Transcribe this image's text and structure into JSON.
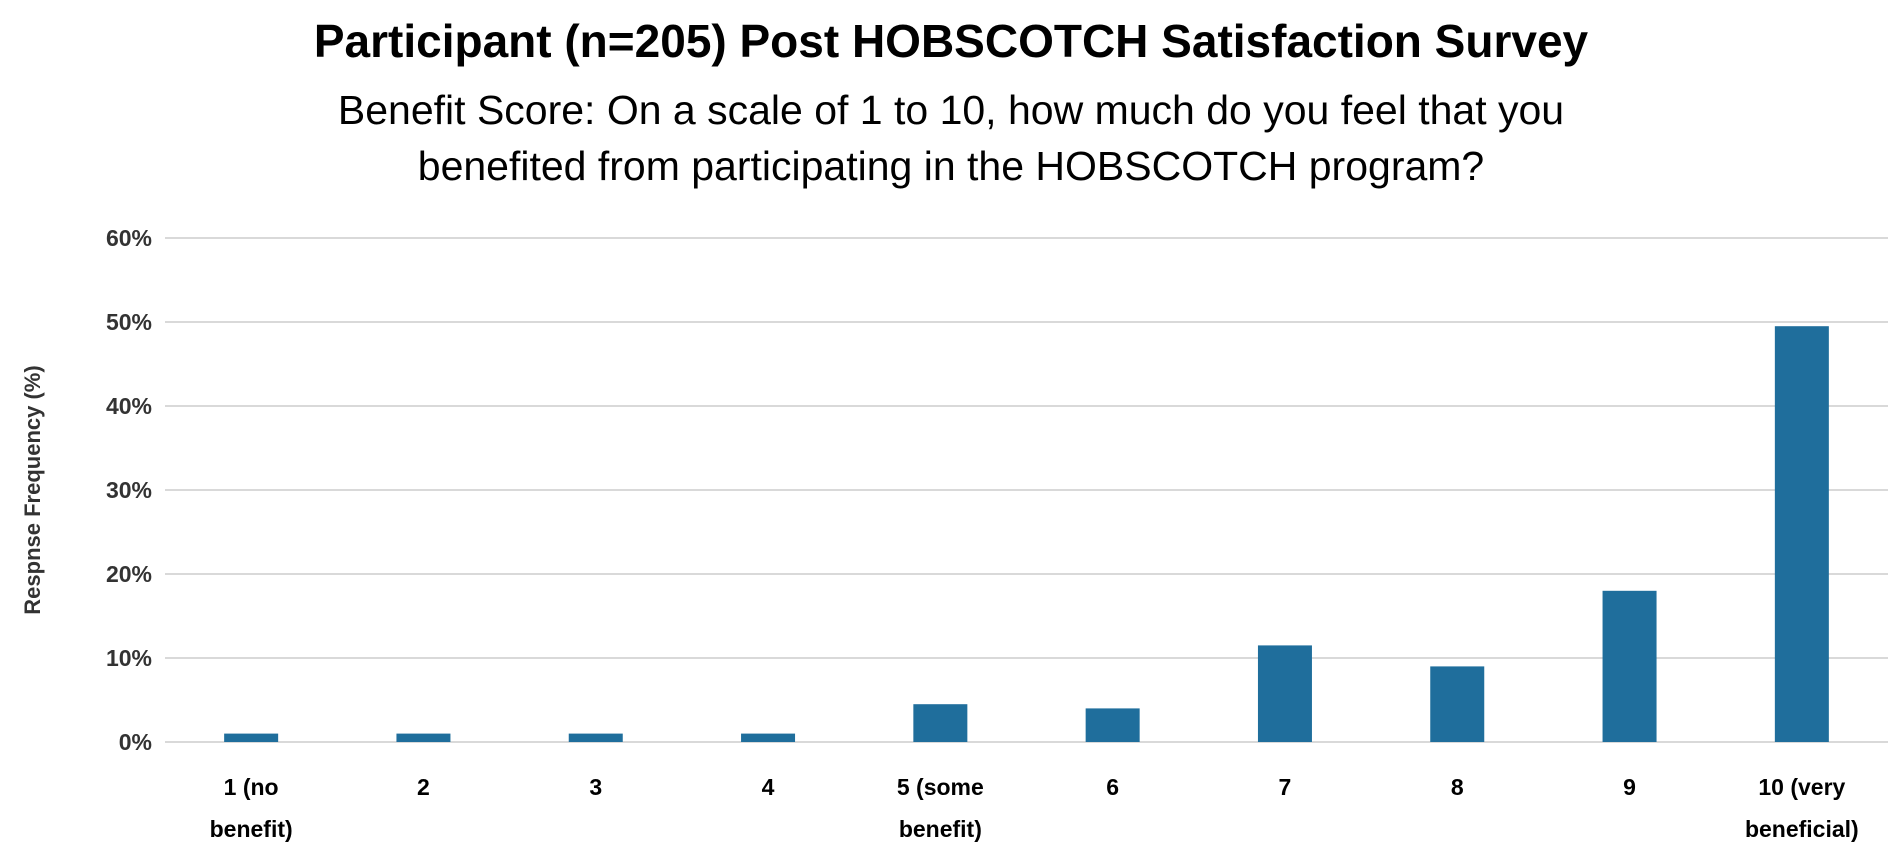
{
  "chart_data": {
    "type": "bar",
    "title": "Participant (n=205) Post HOBSCOTCH Satisfaction Survey",
    "subtitle_lines": [
      "Benefit Score: On a scale of 1 to 10, how much do you feel that you",
      "benefited from participating in the HOBSCOTCH program?"
    ],
    "ylabel": "Respnse Frequency (%)",
    "xlabel": "",
    "ylim": [
      0,
      60
    ],
    "y_ticks": [
      0,
      10,
      20,
      30,
      40,
      50,
      60
    ],
    "y_tick_labels": [
      "0%",
      "10%",
      "20%",
      "30%",
      "40%",
      "50%",
      "60%"
    ],
    "categories": [
      [
        "1 (no",
        "benefit)"
      ],
      [
        "2"
      ],
      [
        "3"
      ],
      [
        "4"
      ],
      [
        "5 (some",
        "benefit)"
      ],
      [
        "6"
      ],
      [
        "7"
      ],
      [
        "8"
      ],
      [
        "9"
      ],
      [
        "10 (very",
        "beneficial)"
      ]
    ],
    "values": [
      1,
      1,
      1,
      1,
      4.5,
      4,
      11.5,
      9,
      18,
      49.5
    ],
    "grid": true,
    "bar_color": "#1f6e9c",
    "grid_color": "#d9d9d9"
  }
}
